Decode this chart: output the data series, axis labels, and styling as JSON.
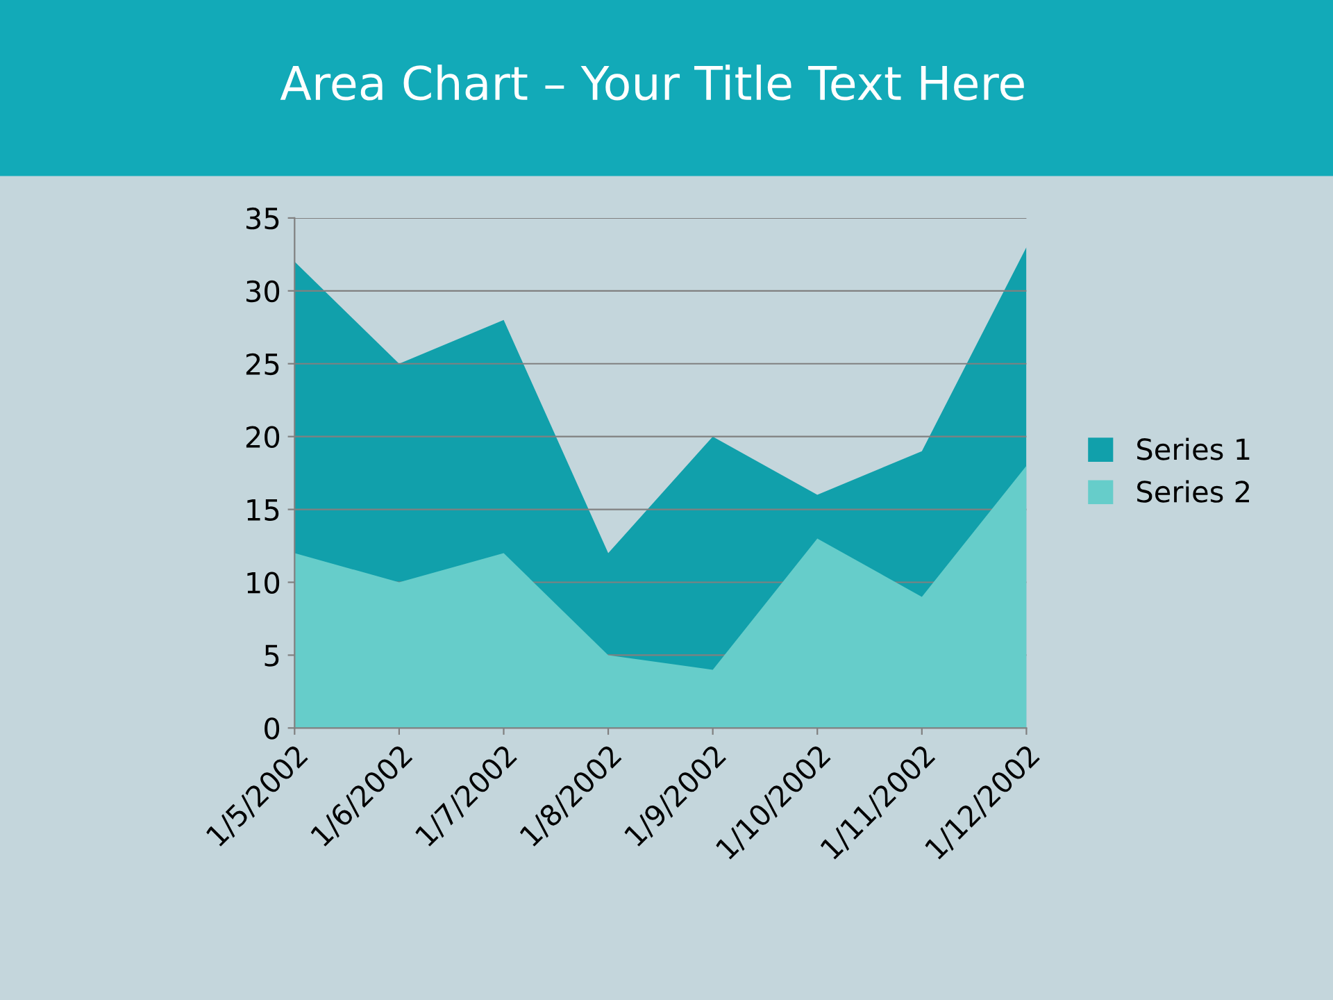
{
  "chart_data": {
    "type": "area",
    "title": "Area Chart – Your Title Text Here",
    "categories": [
      "1/5/2002",
      "1/6/2002",
      "1/7/2002",
      "1/8/2002",
      "1/9/2002",
      "1/10/2002",
      "1/11/2002",
      "1/12/2002"
    ],
    "series": [
      {
        "name": "Series 1",
        "color": "#11a0ab",
        "values": [
          32,
          25,
          28,
          12,
          20,
          16,
          19,
          33
        ]
      },
      {
        "name": "Series 2",
        "color": "#66cdca",
        "values": [
          12,
          10,
          12,
          5,
          4,
          13,
          9,
          18
        ]
      }
    ],
    "ylim": [
      0,
      35
    ],
    "yticks": [
      0,
      5,
      10,
      15,
      20,
      25,
      30,
      35
    ],
    "grid": "y",
    "legend": "right"
  }
}
